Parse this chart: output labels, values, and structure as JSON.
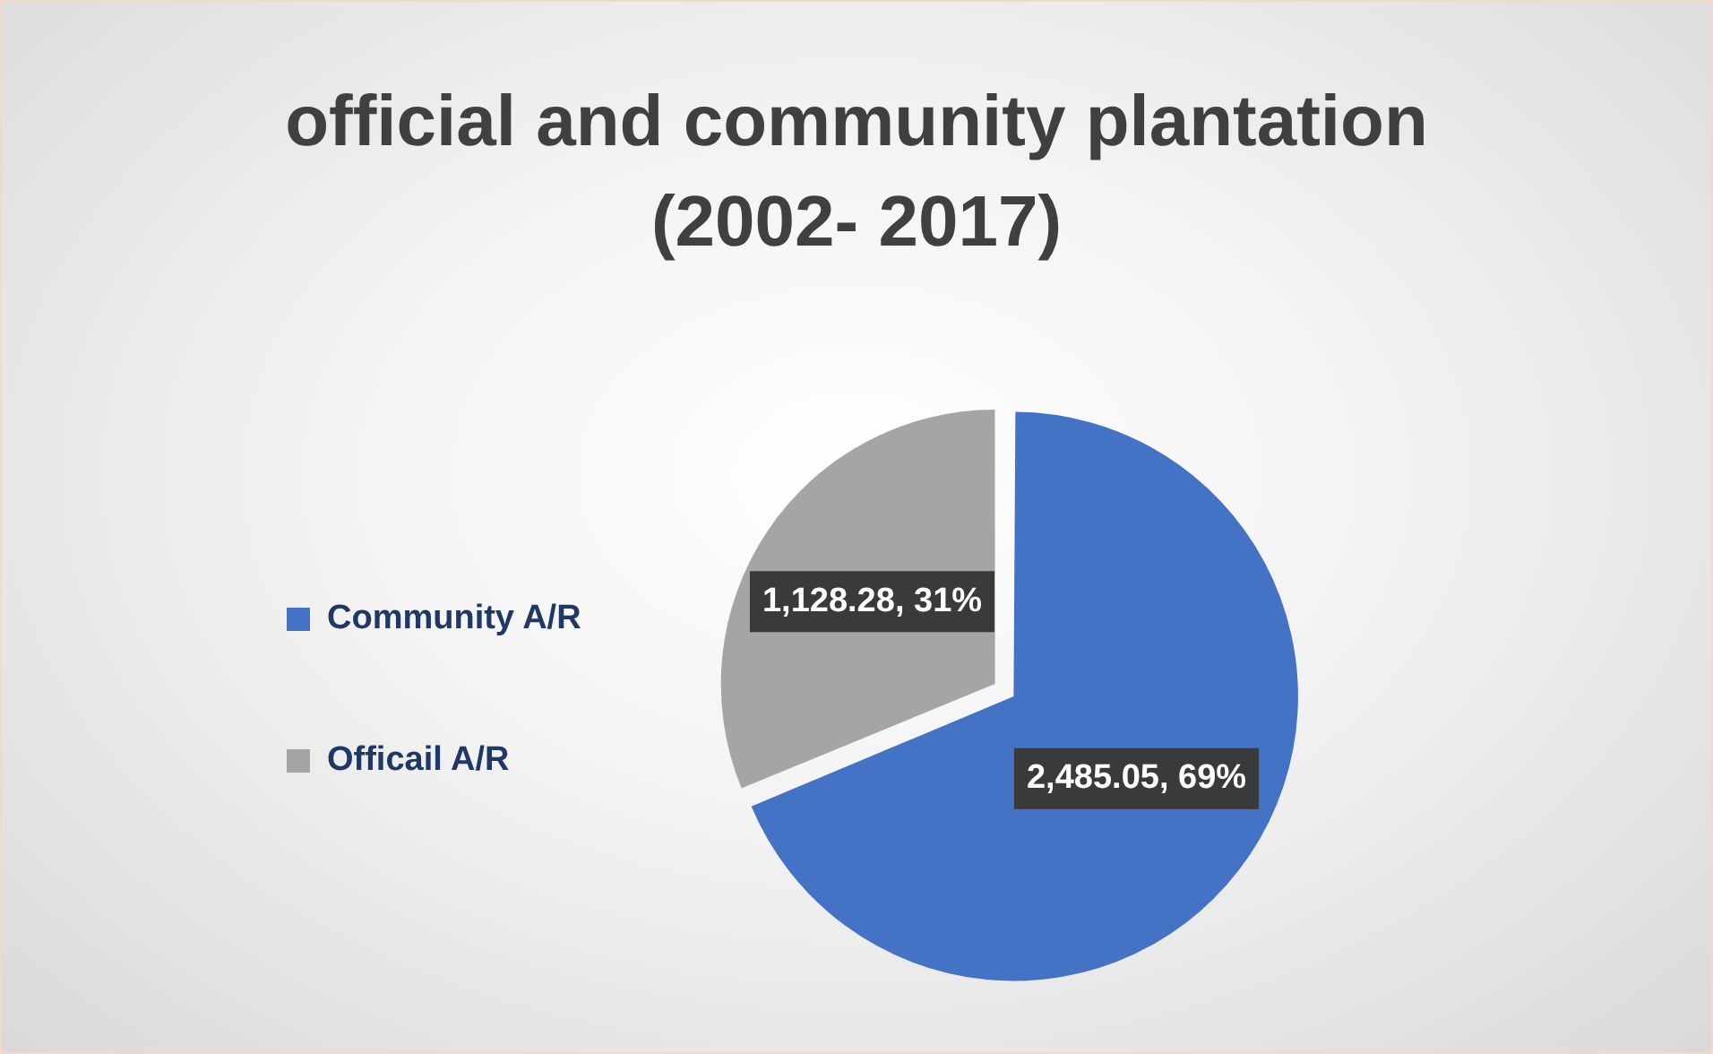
{
  "chart_data": {
    "type": "pie",
    "title": "official and community plantation (2002- 2017)",
    "categories": [
      "Community A/R",
      "Officail A/R"
    ],
    "values": [
      2485.05,
      1128.28
    ],
    "colors": [
      "#4472c4",
      "#a5a5a5"
    ],
    "value_labels": [
      "2,485.05, 69%",
      "1,128.28, 31%"
    ],
    "legend": "left"
  }
}
